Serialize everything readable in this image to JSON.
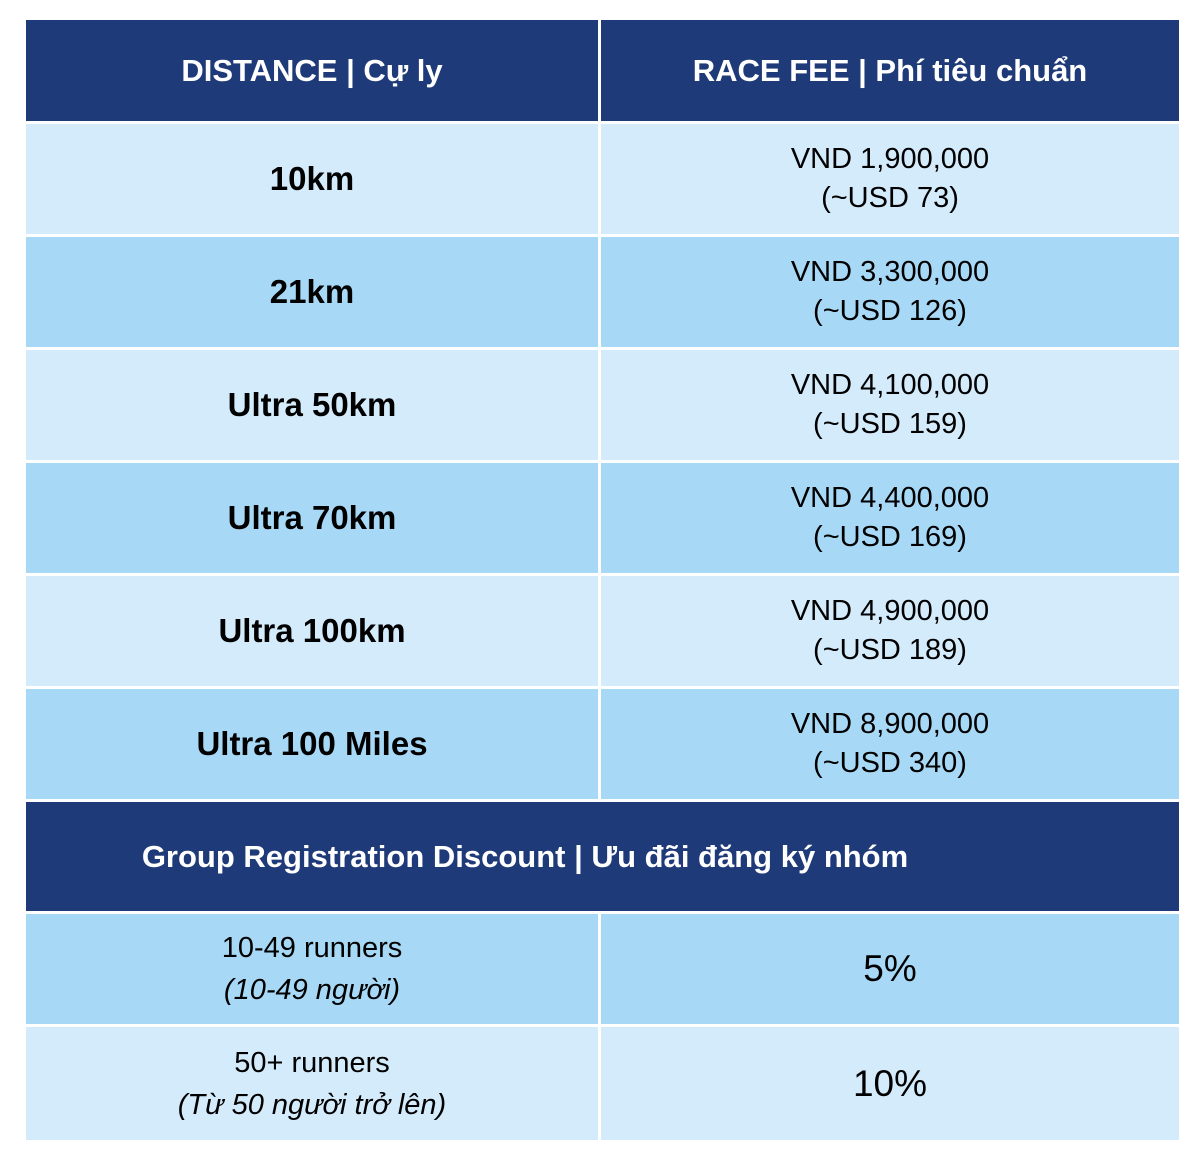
{
  "header": {
    "distance": "DISTANCE | Cự ly",
    "race_fee": "RACE FEE | Phí tiêu chuẩn"
  },
  "rows": [
    {
      "distance": "10km",
      "vnd": "VND 1,900,000",
      "usd": "(~USD 73)"
    },
    {
      "distance": "21km",
      "vnd": "VND 3,300,000",
      "usd": "(~USD 126)"
    },
    {
      "distance": "Ultra 50km",
      "vnd": "VND 4,100,000",
      "usd": "(~USD 159)"
    },
    {
      "distance": "Ultra 70km",
      "vnd": "VND 4,400,000",
      "usd": "(~USD 169)"
    },
    {
      "distance": "Ultra 100km",
      "vnd": "VND 4,900,000",
      "usd": "(~USD 189)"
    },
    {
      "distance": "Ultra 100 Miles",
      "vnd": "VND 8,900,000",
      "usd": "(~USD 340)"
    }
  ],
  "group": {
    "title": "Group Registration Discount | Ưu đãi đăng ký nhóm",
    "rows": [
      {
        "label": "10-49 runners",
        "sub": "(10-49 người)",
        "discount": "5%"
      },
      {
        "label": "50+ runners",
        "sub": "(Từ 50 người trở lên)",
        "discount": "10%"
      }
    ]
  },
  "colors": {
    "header_bg": "#1f3a78",
    "row_light": "#d4ebfb",
    "row_dark": "#a7d9f6"
  }
}
